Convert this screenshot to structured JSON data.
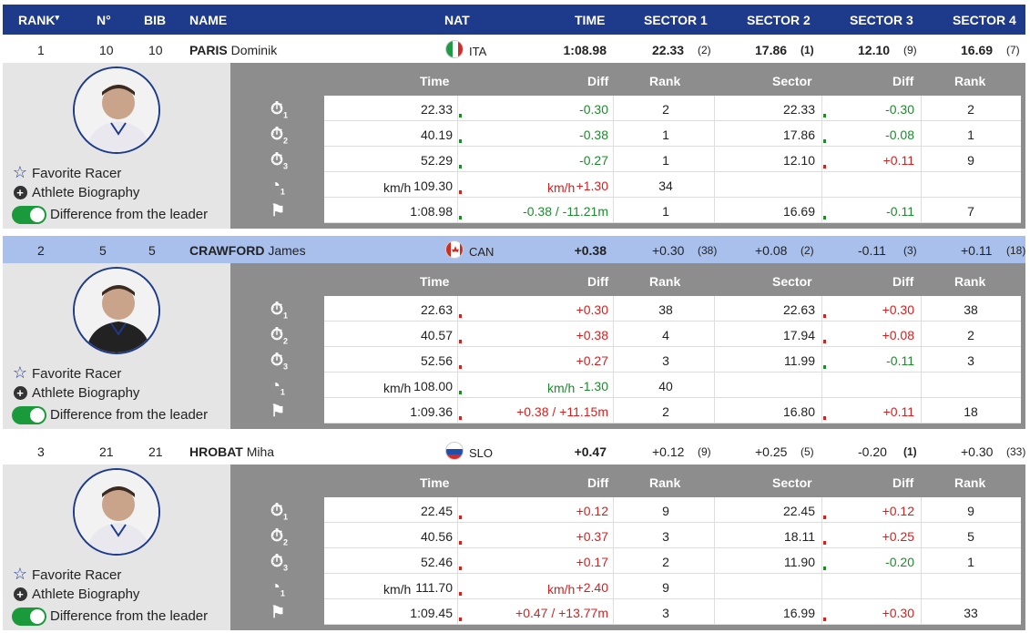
{
  "header": {
    "rank": "RANK",
    "rank_sort": "▾",
    "no": "N°",
    "bib": "BIB",
    "name": "NAME",
    "nat": "NAT",
    "time": "TIME",
    "s1": "SECTOR 1",
    "s2": "SECTOR 2",
    "s3": "SECTOR 3",
    "s4": "SECTOR 4"
  },
  "detail_headers": {
    "time": "Time",
    "diff": "Diff",
    "rank": "Rank",
    "sector": "Sector",
    "sdiff": "Diff",
    "srank": "Rank"
  },
  "links": {
    "favorite": "Favorite Racer",
    "bio": "Athlete Biography",
    "diff": "Difference from the leader"
  },
  "units": {
    "kmh": "km/h"
  },
  "racers": [
    {
      "rank": "1",
      "no": "10",
      "bib": "10",
      "last": "PARIS",
      "first": "Dominik",
      "nat": "ITA",
      "time": "1:08.98",
      "sectors": [
        {
          "v": "22.33",
          "r": "(2)"
        },
        {
          "v": "17.86",
          "r": "(1)"
        },
        {
          "v": "12.10",
          "r": "(9)"
        },
        {
          "v": "16.69",
          "r": "(7)"
        }
      ],
      "rows": [
        {
          "t": "22.33",
          "d": "-0.30",
          "r": "2",
          "s": "22.33",
          "sd": "-0.30",
          "sr": "2"
        },
        {
          "t": "40.19",
          "d": "-0.38",
          "r": "1",
          "s": "17.86",
          "sd": "-0.08",
          "sr": "1"
        },
        {
          "t": "52.29",
          "d": "-0.27",
          "r": "1",
          "s": "12.10",
          "sd": "+0.11",
          "sr": "9"
        },
        {
          "t": "109.30",
          "d": "+1.30",
          "r": "34",
          "s": "",
          "sd": "",
          "sr": ""
        },
        {
          "t": "1:08.98",
          "d": "-0.38 / -11.21m",
          "r": "1",
          "s": "16.69",
          "sd": "-0.11",
          "sr": "7"
        }
      ]
    },
    {
      "rank": "2",
      "no": "5",
      "bib": "5",
      "last": "CRAWFORD",
      "first": "James",
      "nat": "CAN",
      "time": "+0.38",
      "sectors": [
        {
          "v": "+0.30",
          "r": "(38)"
        },
        {
          "v": "+0.08",
          "r": "(2)"
        },
        {
          "v": "-0.11",
          "r": "(3)"
        },
        {
          "v": "+0.11",
          "r": "(18)"
        }
      ],
      "rows": [
        {
          "t": "22.63",
          "d": "+0.30",
          "r": "38",
          "s": "22.63",
          "sd": "+0.30",
          "sr": "38"
        },
        {
          "t": "40.57",
          "d": "+0.38",
          "r": "4",
          "s": "17.94",
          "sd": "+0.08",
          "sr": "2"
        },
        {
          "t": "52.56",
          "d": "+0.27",
          "r": "3",
          "s": "11.99",
          "sd": "-0.11",
          "sr": "3"
        },
        {
          "t": "108.00",
          "d": "-1.30",
          "r": "40",
          "s": "",
          "sd": "",
          "sr": ""
        },
        {
          "t": "1:09.36",
          "d": "+0.38 / +11.15m",
          "r": "2",
          "s": "16.80",
          "sd": "+0.11",
          "sr": "18"
        }
      ]
    },
    {
      "rank": "3",
      "no": "21",
      "bib": "21",
      "last": "HROBAT",
      "first": "Miha",
      "nat": "SLO",
      "time": "+0.47",
      "sectors": [
        {
          "v": "+0.12",
          "r": "(9)"
        },
        {
          "v": "+0.25",
          "r": "(5)"
        },
        {
          "v": "-0.20",
          "r": "(1)"
        },
        {
          "v": "+0.30",
          "r": "(33)"
        }
      ],
      "rows": [
        {
          "t": "22.45",
          "d": "+0.12",
          "r": "9",
          "s": "22.45",
          "sd": "+0.12",
          "sr": "9"
        },
        {
          "t": "40.56",
          "d": "+0.37",
          "r": "3",
          "s": "18.11",
          "sd": "+0.25",
          "sr": "5"
        },
        {
          "t": "52.46",
          "d": "+0.17",
          "r": "2",
          "s": "11.90",
          "sd": "-0.20",
          "sr": "1"
        },
        {
          "t": "111.70",
          "d": "+2.40",
          "r": "9",
          "s": "",
          "sd": "",
          "sr": ""
        },
        {
          "t": "1:09.45",
          "d": "+0.47 / +13.77m",
          "r": "3",
          "s": "16.99",
          "sd": "+0.30",
          "sr": "33"
        }
      ]
    }
  ],
  "colors": {
    "header": "#1e3a8a",
    "highlight": "#a9c0ec",
    "green": "#1e8a2e",
    "red": "#d62020",
    "detail_bg": "#8d8d8d"
  },
  "icons": [
    "stopwatch-icon",
    "speed-gauge-icon",
    "finish-flag-icon",
    "star-icon",
    "plus-circle-icon",
    "toggle-icon"
  ]
}
